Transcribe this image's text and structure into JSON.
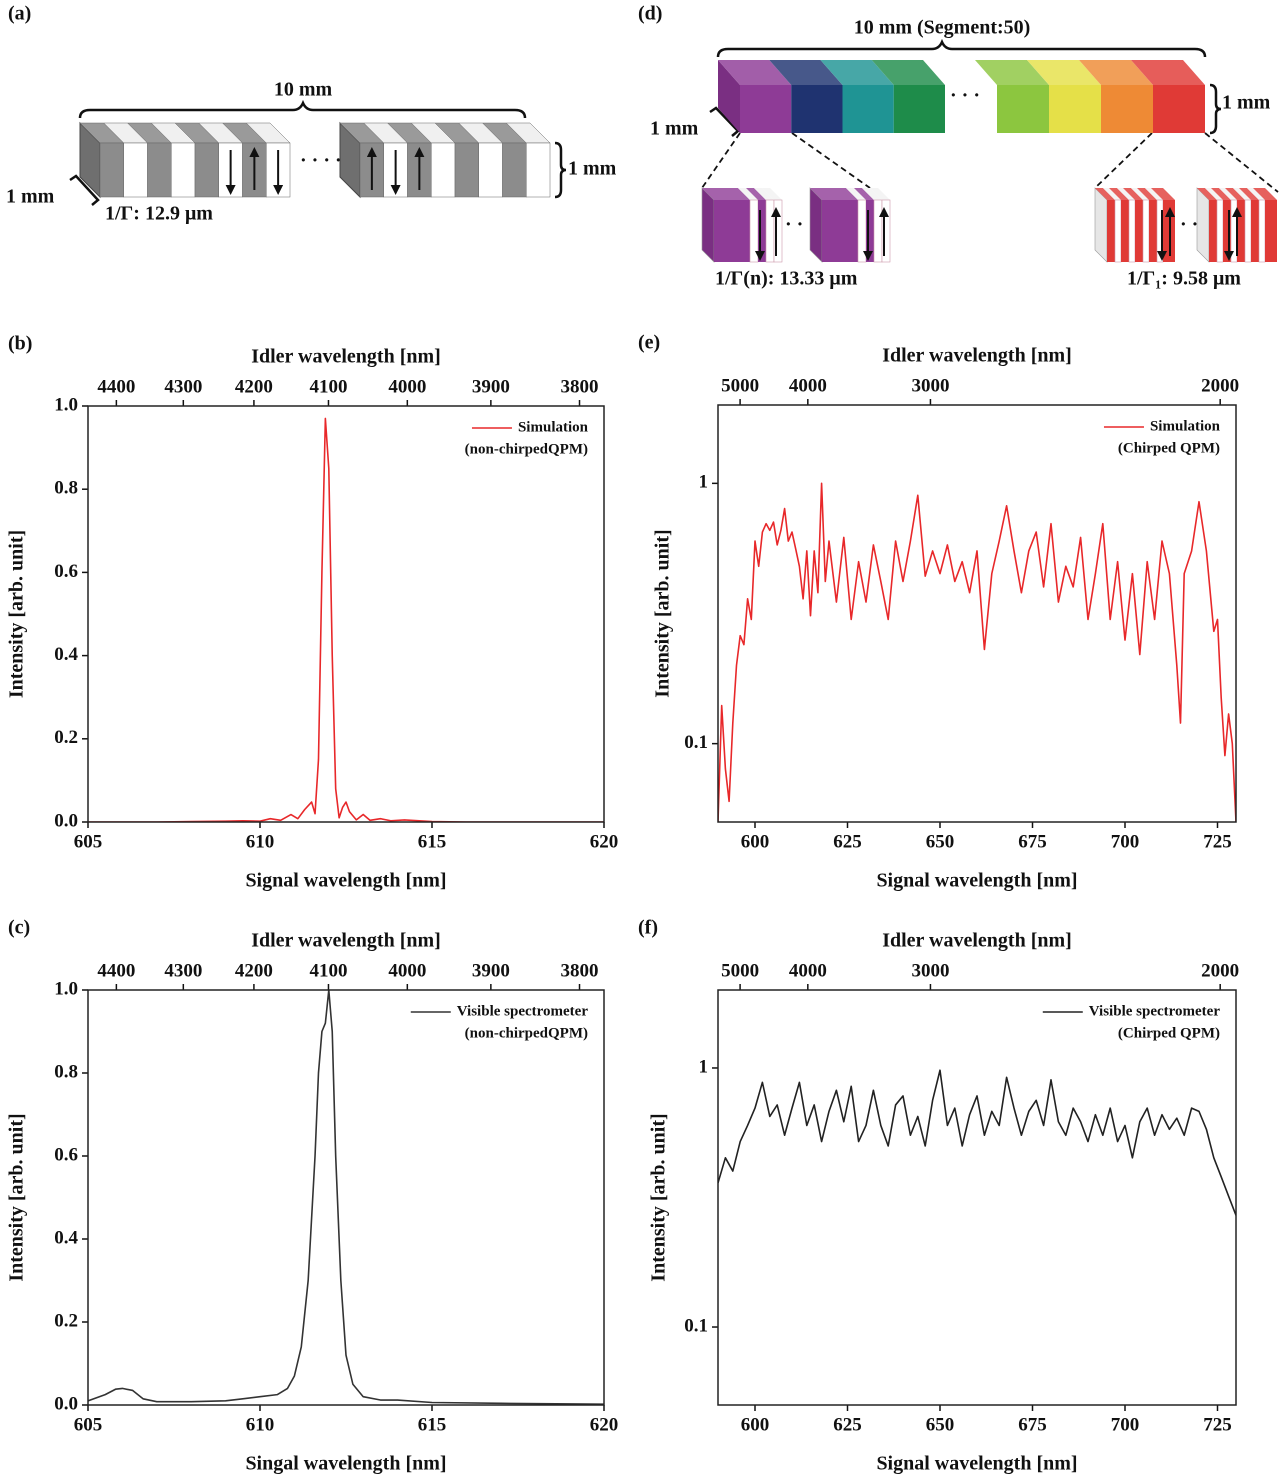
{
  "diagram_a": {
    "panel_label": "(a)",
    "length": "10 mm",
    "height": "1 mm",
    "depth": "1 mm",
    "period": "1/Γ: 12.9 μm"
  },
  "diagram_d": {
    "panel_label": "(d)",
    "length": "10 mm (Segment:50)",
    "height": "1 mm",
    "depth": "1 mm",
    "period_first": "1/Γ(n): 13.33 μm",
    "period_last": "1/Γ₁: 9.58 μm"
  },
  "chart_data": [
    {
      "type": "line",
      "panel_label": "(b)",
      "xlabel": "Signal wavelength [nm]",
      "x2label": "Idler wavelength [nm]",
      "ylabel": "Intensity [arb. unit]",
      "xlim": [
        605,
        620
      ],
      "xticks": [
        605,
        610,
        615,
        620
      ],
      "x2lim": [
        4444,
        3774
      ],
      "x2scale": "reciprocal",
      "x2ticks": [
        4400,
        4300,
        4200,
        4100,
        4000,
        3900,
        3800
      ],
      "ylim": [
        0,
        1
      ],
      "yticks": [
        {
          "value": 0,
          "label": "0.0"
        },
        0.2,
        0.4,
        0.6,
        0.8,
        {
          "value": 1,
          "label": "1.0"
        }
      ],
      "legend": "upper right",
      "legend_note": "(non-chirpedQPM)",
      "x": [
        605,
        606,
        607,
        608,
        609,
        609.5,
        610,
        610.3,
        610.6,
        610.9,
        611.1,
        611.3,
        611.5,
        611.6,
        611.7,
        611.8,
        611.9,
        612.0,
        612.1,
        612.2,
        612.3,
        612.4,
        612.5,
        612.6,
        612.8,
        613.0,
        613.2,
        613.5,
        613.8,
        614.2,
        615,
        616,
        618,
        620
      ],
      "series": [
        {
          "name": "Simulation",
          "color": "#e8282a",
          "values": [
            0,
            0,
            0,
            0.001,
            0.002,
            0.003,
            0.002,
            0.008,
            0.004,
            0.018,
            0.008,
            0.03,
            0.048,
            0.02,
            0.15,
            0.6,
            0.97,
            0.85,
            0.4,
            0.08,
            0.01,
            0.035,
            0.048,
            0.025,
            0.005,
            0.018,
            0.004,
            0.008,
            0.003,
            0.005,
            0.001,
            0,
            0,
            0
          ]
        }
      ]
    },
    {
      "type": "line",
      "panel_label": "(c)",
      "xlabel": "Singal wavelength [nm]",
      "x2label": "Idler wavelength [nm]",
      "ylabel": "Intensity [arb. unit]",
      "xlim": [
        605,
        620
      ],
      "xticks": [
        605,
        610,
        615,
        620
      ],
      "x2lim": [
        4444,
        3774
      ],
      "x2scale": "reciprocal",
      "x2ticks": [
        4400,
        4300,
        4200,
        4100,
        4000,
        3900,
        3800
      ],
      "ylim": [
        0,
        1
      ],
      "yticks": [
        {
          "value": 0,
          "label": "0.0"
        },
        0.2,
        0.4,
        0.6,
        0.8,
        {
          "value": 1,
          "label": "1.0"
        }
      ],
      "legend": "upper right",
      "legend_note": "(non-chirpedQPM)",
      "x": [
        605,
        605.5,
        605.8,
        606.0,
        606.3,
        606.6,
        607,
        608,
        609,
        609.5,
        610,
        610.5,
        610.8,
        611.0,
        611.2,
        611.4,
        611.6,
        611.7,
        611.8,
        611.9,
        612.0,
        612.1,
        612.2,
        612.35,
        612.5,
        612.7,
        613,
        613.5,
        614,
        615,
        617,
        620
      ],
      "series": [
        {
          "name": "Visible spectrometer",
          "color": "#333333",
          "values": [
            0.01,
            0.025,
            0.038,
            0.04,
            0.035,
            0.015,
            0.008,
            0.008,
            0.01,
            0.015,
            0.02,
            0.025,
            0.04,
            0.07,
            0.14,
            0.3,
            0.6,
            0.8,
            0.9,
            0.92,
            1.0,
            0.9,
            0.6,
            0.3,
            0.12,
            0.05,
            0.02,
            0.012,
            0.012,
            0.006,
            0.004,
            0.002
          ]
        }
      ]
    },
    {
      "type": "line",
      "panel_label": "(e)",
      "xlabel": "Signal wavelength [nm]",
      "x2label": "Idler wavelength [nm]",
      "ylabel": "Intensity [arb. unit]",
      "xlim": [
        590,
        730
      ],
      "xticks": [
        600,
        625,
        650,
        675,
        700,
        725
      ],
      "x2lim": [
        5464,
        1969
      ],
      "x2scale": "reciprocal",
      "x2ticks": [
        5000,
        4000,
        3000,
        2000
      ],
      "ylim": [
        0.05,
        2
      ],
      "yscale": "log",
      "yticks": [
        0.1,
        1
      ],
      "legend": "upper right",
      "legend_note": "(Chirped QPM)",
      "x": [
        590,
        591,
        592,
        593,
        594,
        595,
        596,
        597,
        598,
        599,
        600,
        601,
        602,
        603,
        604,
        605,
        606,
        607,
        608,
        609,
        610,
        611,
        612,
        613,
        614,
        615,
        616,
        617,
        618,
        619,
        620,
        622,
        624,
        626,
        628,
        630,
        632,
        634,
        636,
        638,
        640,
        642,
        644,
        646,
        648,
        650,
        652,
        654,
        656,
        658,
        660,
        662,
        664,
        666,
        668,
        670,
        672,
        674,
        676,
        678,
        680,
        682,
        684,
        686,
        688,
        690,
        692,
        694,
        696,
        698,
        700,
        702,
        704,
        706,
        708,
        710,
        712,
        714,
        715,
        716,
        718,
        720,
        722,
        724,
        725,
        726,
        727,
        728,
        729,
        730
      ],
      "series": [
        {
          "name": "Simulation",
          "color": "#e8282a",
          "values": [
            0.05,
            0.14,
            0.08,
            0.06,
            0.12,
            0.2,
            0.26,
            0.24,
            0.36,
            0.3,
            0.6,
            0.48,
            0.65,
            0.7,
            0.66,
            0.71,
            0.58,
            0.66,
            0.8,
            0.6,
            0.65,
            0.56,
            0.48,
            0.36,
            0.55,
            0.31,
            0.55,
            0.38,
            1.0,
            0.42,
            0.6,
            0.35,
            0.62,
            0.3,
            0.5,
            0.35,
            0.58,
            0.42,
            0.3,
            0.6,
            0.42,
            0.6,
            0.9,
            0.44,
            0.55,
            0.45,
            0.58,
            0.42,
            0.5,
            0.38,
            0.55,
            0.23,
            0.45,
            0.6,
            0.82,
            0.55,
            0.38,
            0.55,
            0.65,
            0.4,
            0.7,
            0.35,
            0.48,
            0.4,
            0.62,
            0.3,
            0.45,
            0.7,
            0.3,
            0.5,
            0.25,
            0.45,
            0.22,
            0.5,
            0.3,
            0.6,
            0.45,
            0.2,
            0.12,
            0.45,
            0.55,
            0.85,
            0.55,
            0.27,
            0.3,
            0.15,
            0.09,
            0.13,
            0.1,
            0.05
          ]
        }
      ]
    },
    {
      "type": "line",
      "panel_label": "(f)",
      "xlabel": "Signal wavelength [nm]",
      "x2label": "Idler wavelength [nm]",
      "ylabel": "Intensity [arb. unit]",
      "xlim": [
        590,
        730
      ],
      "xticks": [
        600,
        625,
        650,
        675,
        700,
        725
      ],
      "x2lim": [
        5464,
        1969
      ],
      "x2scale": "reciprocal",
      "x2ticks": [
        5000,
        4000,
        3000,
        2000
      ],
      "ylim": [
        0.05,
        2
      ],
      "yscale": "log",
      "yticks": [
        0.1,
        1
      ],
      "legend": "upper right",
      "legend_note": "(Chirped QPM)",
      "x": [
        590,
        592,
        594,
        596,
        598,
        600,
        602,
        604,
        606,
        608,
        610,
        612,
        614,
        616,
        618,
        620,
        622,
        624,
        626,
        628,
        630,
        632,
        634,
        636,
        638,
        640,
        642,
        644,
        646,
        648,
        650,
        652,
        654,
        656,
        658,
        660,
        662,
        664,
        666,
        668,
        670,
        672,
        674,
        676,
        678,
        680,
        682,
        684,
        686,
        688,
        690,
        692,
        694,
        696,
        698,
        700,
        702,
        704,
        706,
        708,
        710,
        712,
        714,
        716,
        718,
        720,
        722,
        724,
        726,
        728,
        730
      ],
      "series": [
        {
          "name": "Visible spectrometer",
          "color": "#222222",
          "values": [
            0.36,
            0.45,
            0.4,
            0.52,
            0.6,
            0.7,
            0.88,
            0.65,
            0.72,
            0.55,
            0.7,
            0.88,
            0.6,
            0.72,
            0.52,
            0.68,
            0.82,
            0.62,
            0.85,
            0.52,
            0.6,
            0.82,
            0.6,
            0.5,
            0.72,
            0.78,
            0.55,
            0.65,
            0.5,
            0.75,
            0.98,
            0.6,
            0.7,
            0.5,
            0.66,
            0.78,
            0.55,
            0.68,
            0.6,
            0.92,
            0.7,
            0.55,
            0.68,
            0.75,
            0.6,
            0.9,
            0.62,
            0.55,
            0.7,
            0.62,
            0.52,
            0.66,
            0.55,
            0.7,
            0.52,
            0.6,
            0.45,
            0.62,
            0.7,
            0.55,
            0.66,
            0.58,
            0.64,
            0.55,
            0.7,
            0.68,
            0.58,
            0.45,
            0.38,
            0.32,
            0.27
          ]
        }
      ]
    }
  ]
}
